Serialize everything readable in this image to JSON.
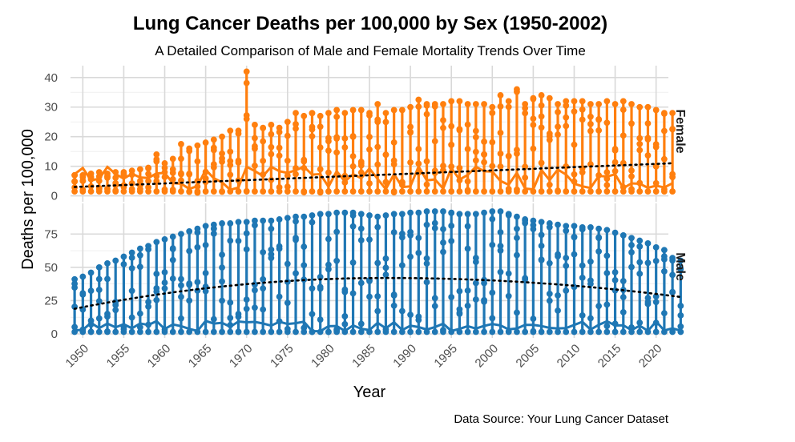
{
  "chart_data": {
    "type": "line",
    "title": "Lung Cancer Deaths per 100,000 by Sex (1950-2002)",
    "subtitle": "A Detailed Comparison of Male and Female Mortality Trends Over Time",
    "xlabel": "Year",
    "ylabel": "Deaths per 100,000",
    "caption": "Data Source: Your Lung Cancer Dataset",
    "x_ticks": [
      1950,
      1955,
      1960,
      1965,
      1970,
      1975,
      1980,
      1985,
      1990,
      1995,
      2000,
      2005,
      2010,
      2015,
      2020
    ],
    "xlim": [
      1948.5,
      2021.5
    ],
    "grid": true,
    "facets": [
      {
        "label": "Female",
        "color": "#ff7f0e",
        "trend_color": "#000000",
        "ylim": [
          -2,
          44
        ],
        "y_ticks": [
          0,
          10,
          20,
          30,
          40
        ],
        "max_values": [
          7,
          7,
          7.5,
          8,
          7.5,
          8,
          8,
          8.5,
          9,
          9.5,
          14,
          11,
          12.5,
          17.5,
          16,
          17,
          18,
          19,
          20,
          22,
          22,
          42,
          24,
          23,
          24,
          23,
          25,
          28,
          27,
          28,
          27,
          28,
          29,
          28,
          29,
          29,
          28,
          31,
          28,
          29,
          29,
          30,
          32.5,
          31,
          31,
          31,
          32,
          32,
          31,
          31,
          31,
          30,
          34,
          32,
          36,
          31,
          33,
          34,
          33,
          31,
          32,
          32,
          32,
          31,
          31,
          32,
          31,
          32,
          31,
          30,
          30,
          29,
          28,
          28
        ]
      },
      {
        "label": "Male",
        "color": "#1f77b4",
        "trend_color": "#000000",
        "ylim": [
          -3,
          98
        ],
        "y_ticks": [
          0,
          25,
          50,
          75
        ],
        "max_values": [
          41,
          43,
          46,
          50,
          53,
          55,
          58,
          61,
          64,
          66,
          69,
          71,
          73,
          75,
          77,
          79,
          81,
          82,
          83,
          83,
          84,
          84,
          85,
          85,
          85,
          86,
          87,
          88,
          88,
          89,
          90,
          90,
          91,
          91,
          91,
          90,
          89,
          88,
          89,
          90,
          90,
          91,
          91,
          92,
          92,
          92,
          91,
          90,
          90,
          90,
          91,
          92,
          92,
          90,
          88,
          86,
          85,
          84,
          83,
          82,
          81,
          81,
          80,
          80,
          79,
          78,
          76,
          74,
          72,
          70,
          68,
          65,
          63,
          57,
          55
        ]
      }
    ]
  }
}
